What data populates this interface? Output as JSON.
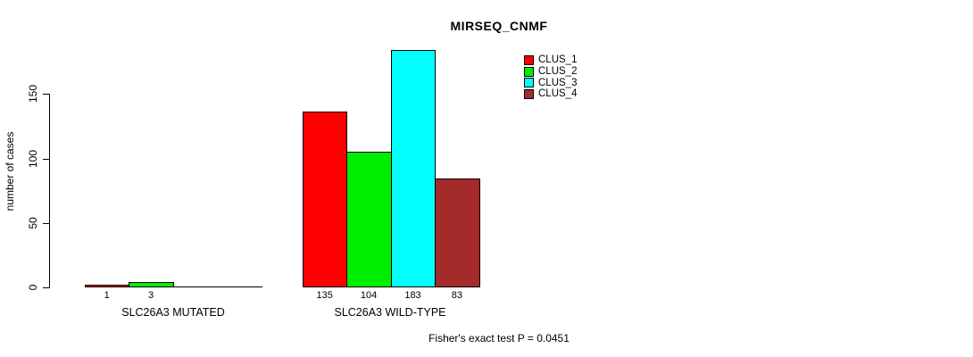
{
  "chart_data": {
    "type": "bar",
    "title": "MIRSEQ_CNMF",
    "ylabel": "number of cases",
    "xlabel": "",
    "yticks": [
      0,
      50,
      100,
      150
    ],
    "ylim": [
      0,
      190
    ],
    "grid": false,
    "legend_position": "top-right-inside",
    "categories": [
      "SLC26A3 MUTATED",
      "SLC26A3 WILD-TYPE"
    ],
    "series": [
      {
        "name": "CLUS_1",
        "color": "#ff0000",
        "values": [
          1,
          135
        ]
      },
      {
        "name": "CLUS_2",
        "color": "#00ee00",
        "values": [
          3,
          104
        ]
      },
      {
        "name": "CLUS_3",
        "color": "#00ffff",
        "values": [
          0,
          183
        ]
      },
      {
        "name": "CLUS_4",
        "color": "#a52a2a",
        "values": [
          0,
          83
        ]
      }
    ],
    "groups": [
      {
        "label": "SLC26A3 MUTATED",
        "values": [
          1,
          3,
          0,
          0
        ],
        "bar_labels": [
          "1",
          "3",
          "",
          ""
        ]
      },
      {
        "label": "SLC26A3 WILD-TYPE",
        "values": [
          135,
          104,
          183,
          83
        ],
        "bar_labels": [
          "135",
          "104",
          "183",
          "83"
        ]
      }
    ],
    "annotation": "Fisher's exact test P = 0.0451"
  }
}
